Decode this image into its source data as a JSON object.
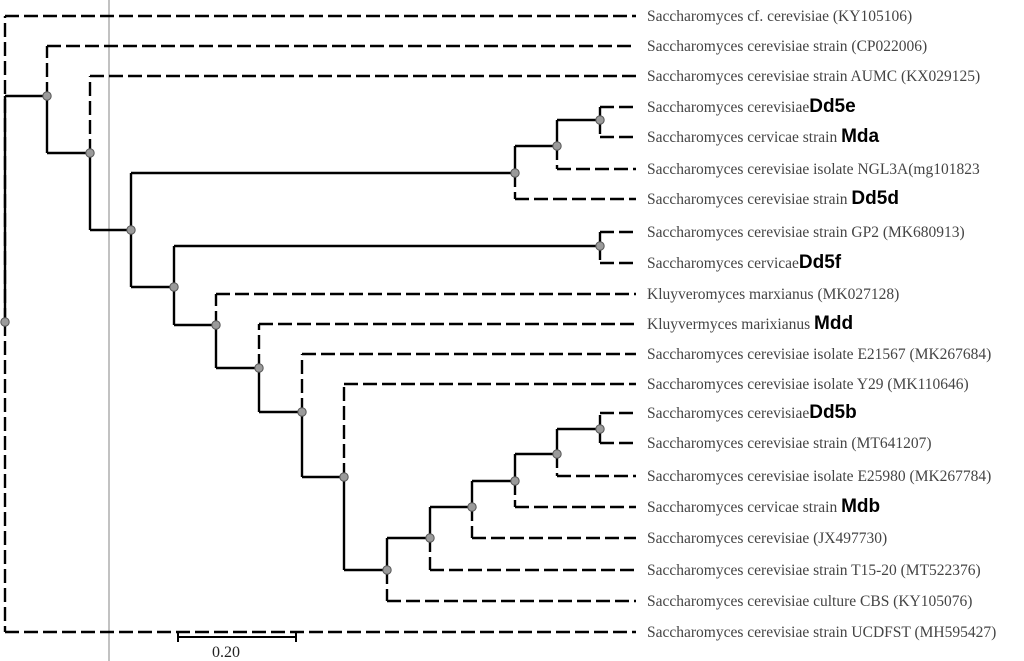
{
  "tree": {
    "leaves": [
      {
        "label": "Saccharomyces cf. cerevisiae (KY105106)",
        "tag": ""
      },
      {
        "label": "Saccharomyces cerevisiae strain (CP022006)",
        "tag": ""
      },
      {
        "label": "Saccharomyces cerevisiae strain AUMC (KX029125)",
        "tag": ""
      },
      {
        "label": "Saccharomyces cerevisiae",
        "tag": "Dd5e"
      },
      {
        "label": "Saccharomyces cervicae strain ",
        "tag": "Mda"
      },
      {
        "label": "Saccharomyces cerevisiae isolate NGL3A(mg101823",
        "tag": ""
      },
      {
        "label": "Saccharomyces cerevisiae strain ",
        "tag": "Dd5d"
      },
      {
        "label": "Saccharomyces cerevisiae strain GP2 (MK680913)",
        "tag": ""
      },
      {
        "label": "Saccharomyces cervicae",
        "tag": "Dd5f"
      },
      {
        "label": "Kluyveromyces marxianus (MK027128)",
        "tag": ""
      },
      {
        "label": "Kluyvermyces marixianus ",
        "tag": "Mdd"
      },
      {
        "label": "Saccharomyces cerevisiae isolate E21567 (MK267684)",
        "tag": ""
      },
      {
        "label": "Saccharomyces cerevisiae isolate Y29 (MK110646)",
        "tag": ""
      },
      {
        "label": "Saccharomyces cerevisiae",
        "tag": "Dd5b"
      },
      {
        "label": "Saccharomyces cerevisiae strain (MT641207)",
        "tag": ""
      },
      {
        "label": "Saccharomyces cerevisiae isolate E25980 (MK267784)",
        "tag": ""
      },
      {
        "label": "Saccharomyces cervicae strain ",
        "tag": "Mdb"
      },
      {
        "label": "Saccharomyces cerevisiae (JX497730)",
        "tag": ""
      },
      {
        "label": "Saccharomyces cerevisiae strain T15-20 (MT522376)",
        "tag": ""
      },
      {
        "label": "Saccharomyces cerevisiae culture CBS (KY105076)",
        "tag": ""
      },
      {
        "label": "Saccharomyces cerevisiae strain UCDFST (MH595427)",
        "tag": ""
      }
    ],
    "scale_bar_label": "0.20",
    "branch_color": "#000000",
    "node_color": "#9a9a9a",
    "label_color": "#444444"
  }
}
